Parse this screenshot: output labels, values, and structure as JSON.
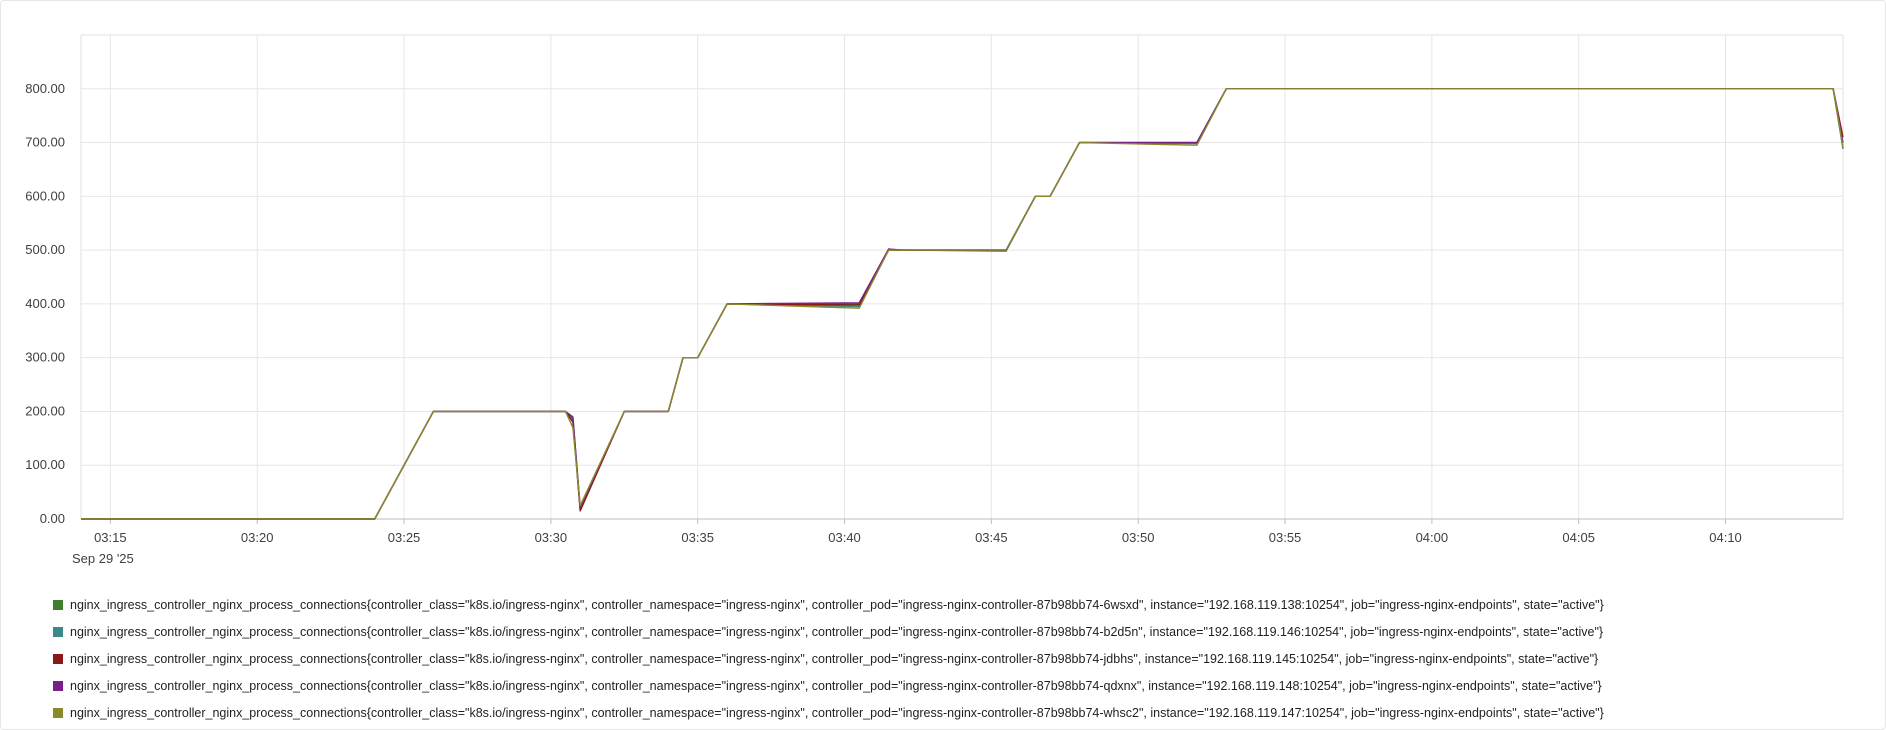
{
  "chart_data": {
    "type": "line",
    "title": "",
    "xlabel": "",
    "ylabel": "",
    "date_label": "Sep 29 '25",
    "ylim": [
      0,
      900
    ],
    "yticks": [
      0,
      100,
      200,
      300,
      400,
      500,
      600,
      700,
      800
    ],
    "ytick_labels": [
      "0.00",
      "100.00",
      "200.00",
      "300.00",
      "400.00",
      "500.00",
      "600.00",
      "700.00",
      "800.00"
    ],
    "xlim": [
      "03:14",
      "04:14"
    ],
    "xticks": [
      "03:15",
      "03:20",
      "03:25",
      "03:30",
      "03:35",
      "03:40",
      "03:45",
      "03:50",
      "03:55",
      "04:00",
      "04:05",
      "04:10"
    ],
    "grid": true,
    "legend_position": "bottom",
    "x": [
      "03:14:00",
      "03:24:00",
      "03:26:00",
      "03:30:30",
      "03:30:45",
      "03:31:00",
      "03:32:30",
      "03:34:00",
      "03:34:30",
      "03:35:00",
      "03:36:00",
      "03:40:30",
      "03:41:30",
      "03:42:00",
      "03:45:30",
      "03:46:30",
      "03:47:00",
      "03:48:00",
      "03:52:00",
      "03:53:00",
      "04:13:40",
      "04:14:00"
    ],
    "series": [
      {
        "name": "nginx_ingress_controller_nginx_process_connections{controller_class=\"k8s.io/ingress-nginx\", controller_namespace=\"ingress-nginx\", controller_pod=\"ingress-nginx-controller-87b98bb74-6wsxd\", instance=\"192.168.119.138:10254\", job=\"ingress-nginx-endpoints\", state=\"active\"}",
        "color": "#3f7f2a",
        "values": [
          0,
          0,
          200,
          200,
          190,
          20,
          200,
          200,
          300,
          300,
          400,
          400,
          500,
          500,
          500,
          600,
          600,
          700,
          700,
          800,
          800,
          690
        ]
      },
      {
        "name": "nginx_ingress_controller_nginx_process_connections{controller_class=\"k8s.io/ingress-nginx\", controller_namespace=\"ingress-nginx\", controller_pod=\"ingress-nginx-controller-87b98bb74-b2d5n\", instance=\"192.168.119.146:10254\", job=\"ingress-nginx-endpoints\", state=\"active\"}",
        "color": "#3a8a8a",
        "values": [
          0,
          0,
          200,
          200,
          185,
          18,
          200,
          200,
          300,
          300,
          400,
          395,
          500,
          500,
          498,
          600,
          600,
          700,
          698,
          800,
          800,
          688
        ]
      },
      {
        "name": "nginx_ingress_controller_nginx_process_connections{controller_class=\"k8s.io/ingress-nginx\", controller_namespace=\"ingress-nginx\", controller_pod=\"ingress-nginx-controller-87b98bb74-jdbhs\", instance=\"192.168.119.145:10254\", job=\"ingress-nginx-endpoints\", state=\"active\"}",
        "color": "#8a1a1a",
        "values": [
          0,
          0,
          200,
          200,
          180,
          15,
          200,
          200,
          300,
          300,
          400,
          398,
          500,
          500,
          500,
          600,
          600,
          700,
          700,
          800,
          800,
          710
        ]
      },
      {
        "name": "nginx_ingress_controller_nginx_process_connections{controller_class=\"k8s.io/ingress-nginx\", controller_namespace=\"ingress-nginx\", controller_pod=\"ingress-nginx-controller-87b98bb74-qdxnx\", instance=\"192.168.119.148:10254\", job=\"ingress-nginx-endpoints\", state=\"active\"}",
        "color": "#7a1f8a",
        "values": [
          0,
          0,
          200,
          200,
          188,
          22,
          200,
          200,
          300,
          300,
          400,
          402,
          502,
          500,
          500,
          600,
          600,
          700,
          700,
          800,
          800,
          700
        ]
      },
      {
        "name": "nginx_ingress_controller_nginx_process_connections{controller_class=\"k8s.io/ingress-nginx\", controller_namespace=\"ingress-nginx\", controller_pod=\"ingress-nginx-controller-87b98bb74-whsc2\", instance=\"192.168.119.147:10254\", job=\"ingress-nginx-endpoints\", state=\"active\"}",
        "color": "#8a8a2a",
        "values": [
          0,
          0,
          200,
          200,
          170,
          25,
          200,
          200,
          300,
          300,
          400,
          392,
          500,
          500,
          500,
          600,
          600,
          700,
          695,
          800,
          800,
          692
        ]
      }
    ]
  }
}
